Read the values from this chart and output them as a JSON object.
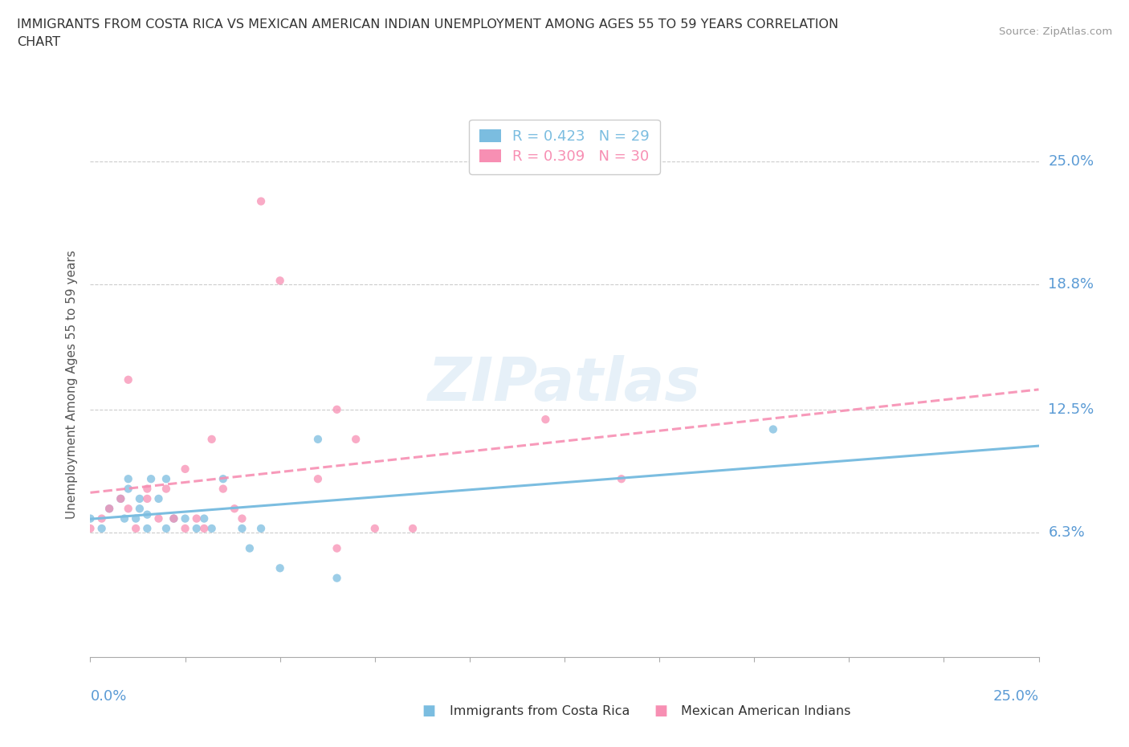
{
  "title_line1": "IMMIGRANTS FROM COSTA RICA VS MEXICAN AMERICAN INDIAN UNEMPLOYMENT AMONG AGES 55 TO 59 YEARS CORRELATION",
  "title_line2": "CHART",
  "source": "Source: ZipAtlas.com",
  "ylabel": "Unemployment Among Ages 55 to 59 years",
  "ytick_labels": [
    "6.3%",
    "12.5%",
    "18.8%",
    "25.0%"
  ],
  "ytick_values": [
    0.063,
    0.125,
    0.188,
    0.25
  ],
  "xlim": [
    0.0,
    0.25
  ],
  "ylim": [
    0.0,
    0.275
  ],
  "legend_label_blue": "Immigrants from Costa Rica",
  "legend_label_pink": "Mexican American Indians",
  "R_blue": "0.423",
  "N_blue": "29",
  "R_pink": "0.309",
  "N_pink": "30",
  "blue_color": "#7BBDE0",
  "pink_color": "#F78FB3",
  "watermark": "ZIPatlas",
  "blue_x": [
    0.0,
    0.003,
    0.005,
    0.008,
    0.009,
    0.01,
    0.01,
    0.012,
    0.013,
    0.013,
    0.015,
    0.015,
    0.016,
    0.018,
    0.02,
    0.02,
    0.022,
    0.025,
    0.028,
    0.03,
    0.032,
    0.035,
    0.04,
    0.042,
    0.045,
    0.05,
    0.06,
    0.065,
    0.18
  ],
  "blue_y": [
    0.07,
    0.065,
    0.075,
    0.08,
    0.07,
    0.085,
    0.09,
    0.07,
    0.075,
    0.08,
    0.065,
    0.072,
    0.09,
    0.08,
    0.065,
    0.09,
    0.07,
    0.07,
    0.065,
    0.07,
    0.065,
    0.09,
    0.065,
    0.055,
    0.065,
    0.045,
    0.11,
    0.04,
    0.115
  ],
  "pink_x": [
    0.0,
    0.003,
    0.005,
    0.008,
    0.01,
    0.01,
    0.012,
    0.015,
    0.015,
    0.018,
    0.02,
    0.022,
    0.025,
    0.025,
    0.028,
    0.03,
    0.032,
    0.035,
    0.038,
    0.04,
    0.045,
    0.05,
    0.06,
    0.065,
    0.065,
    0.07,
    0.075,
    0.085,
    0.12,
    0.14
  ],
  "pink_y": [
    0.065,
    0.07,
    0.075,
    0.08,
    0.075,
    0.14,
    0.065,
    0.08,
    0.085,
    0.07,
    0.085,
    0.07,
    0.065,
    0.095,
    0.07,
    0.065,
    0.11,
    0.085,
    0.075,
    0.07,
    0.23,
    0.19,
    0.09,
    0.055,
    0.125,
    0.11,
    0.065,
    0.065,
    0.12,
    0.09
  ]
}
